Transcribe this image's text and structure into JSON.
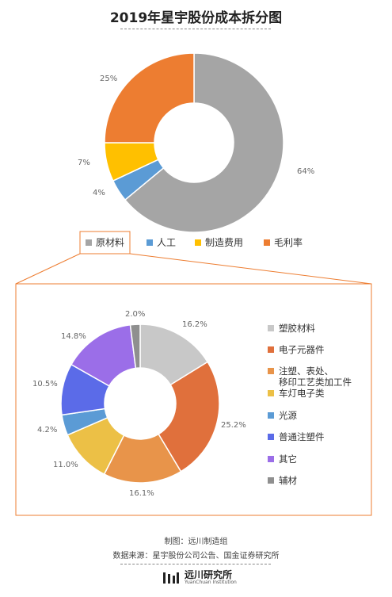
{
  "title": "2019年星宇股份成本拆分图",
  "chart_data": [
    {
      "type": "pie",
      "subtype": "donut",
      "categories": [
        "原材料",
        "人工",
        "制造费用",
        "毛利率"
      ],
      "values": [
        64,
        4,
        7,
        25
      ],
      "labels": [
        "64%",
        "4%",
        "7%",
        "25%"
      ],
      "colors": [
        "#a5a5a5",
        "#5b9bd5",
        "#ffc000",
        "#ed7d31"
      ],
      "legend": "bottom"
    },
    {
      "type": "pie",
      "subtype": "donut",
      "categories": [
        "塑胶材料",
        "电子元器件",
        "注塑、表处、\n移印工艺类加工件",
        "车灯电子类",
        "光源",
        "普通注塑件",
        "其它",
        "辅材"
      ],
      "values": [
        16.2,
        25.2,
        16.1,
        11.0,
        4.2,
        10.5,
        14.8,
        2.0
      ],
      "labels": [
        "16.2%",
        "25.2%",
        "16.1%",
        "11.0%",
        "4.2%",
        "10.5%",
        "14.8%",
        "2.0%"
      ],
      "colors": [
        "#c8c8c8",
        "#e0703c",
        "#e8944a",
        "#ecc046",
        "#5b9bd5",
        "#5b6be8",
        "#9b6ee8",
        "#8f8f8f"
      ],
      "legend": "right"
    }
  ],
  "footer": {
    "made_by": "制图：远川制造组",
    "source": "数据来源：星宇股份公司公告、国金证券研究所"
  },
  "logo": {
    "name_cn": "远川研究所",
    "name_en": "YuanChuan Institution"
  }
}
